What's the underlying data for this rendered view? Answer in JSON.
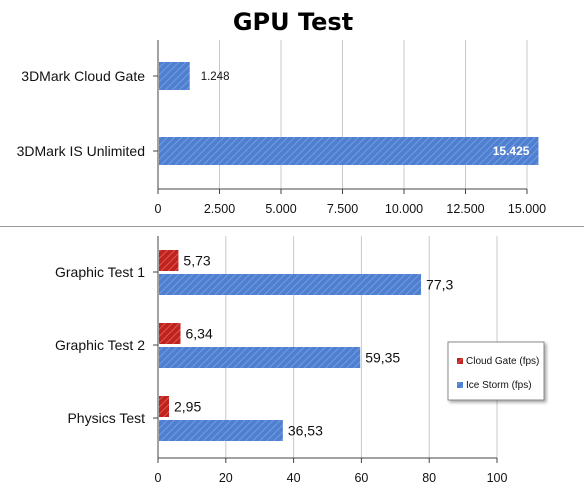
{
  "title": "GPU Test",
  "chart_data": [
    {
      "type": "bar",
      "orientation": "horizontal",
      "categories": [
        "3DMark Cloud Gate",
        "3DMark IS Unlimited"
      ],
      "series": [
        {
          "values": [
            1248,
            15425
          ],
          "labels": [
            "1.248",
            "15.425"
          ],
          "color": "#4f7fd1"
        }
      ],
      "xlim": [
        0,
        15000
      ],
      "xticks": [
        0,
        2500,
        5000,
        7500,
        10000,
        12500,
        15000
      ],
      "xtick_labels": [
        "0",
        "2.500",
        "5.000",
        "7.500",
        "10.000",
        "12.500",
        "15.000"
      ],
      "grid": true
    },
    {
      "type": "bar",
      "orientation": "horizontal",
      "categories": [
        "Graphic Test 1",
        "Graphic Test 2",
        "Physics Test"
      ],
      "series": [
        {
          "name": "Cloud Gate (fps)",
          "values": [
            5.73,
            6.34,
            2.95
          ],
          "labels": [
            "5,73",
            "6,34",
            "2,95"
          ],
          "color": "#c0221d"
        },
        {
          "name": "Ice Storm (fps)",
          "values": [
            77.3,
            59.35,
            36.53
          ],
          "labels": [
            "77,3",
            "59,35",
            "36,53"
          ],
          "color": "#4f7fd1"
        }
      ],
      "xlim": [
        0,
        100
      ],
      "xticks": [
        0,
        20,
        40,
        60,
        80,
        100
      ],
      "xtick_labels": [
        "0",
        "20",
        "40",
        "60",
        "80",
        "100"
      ],
      "grid": true,
      "legend_position": "right"
    }
  ]
}
